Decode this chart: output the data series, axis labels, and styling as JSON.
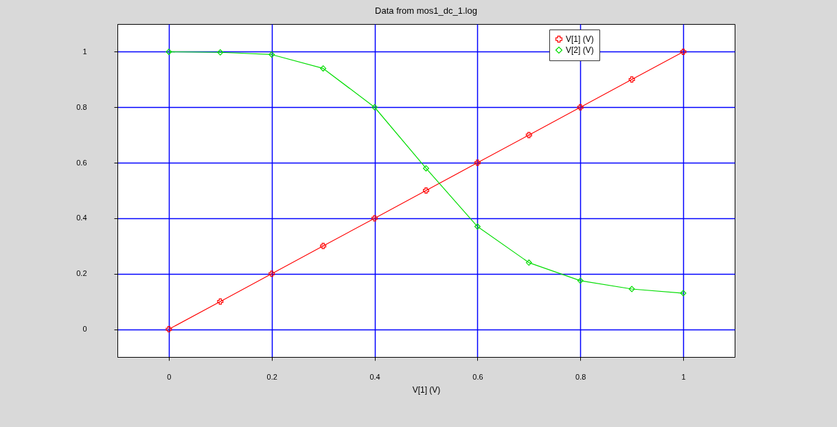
{
  "chart_data": {
    "type": "line",
    "title": "Data from mos1_dc_1.log",
    "xlabel": "V[1] (V)",
    "x": [
      0,
      0.1,
      0.2,
      0.3,
      0.4,
      0.5,
      0.6,
      0.7,
      0.8,
      0.9,
      1
    ],
    "series": [
      {
        "name": "V[1] (V)",
        "color": "#ff0000",
        "marker": "cross",
        "values": [
          0,
          0.1,
          0.2,
          0.3,
          0.4,
          0.5,
          0.6,
          0.7,
          0.8,
          0.9,
          1
        ]
      },
      {
        "name": "V[2] (V)",
        "color": "#00dd00",
        "marker": "diamond",
        "values": [
          1,
          0.998,
          0.99,
          0.94,
          0.8,
          0.58,
          0.37,
          0.24,
          0.175,
          0.145,
          0.13
        ]
      }
    ],
    "xlim": [
      -0.1,
      1.1
    ],
    "xticks": [
      0,
      0.2,
      0.4,
      0.6,
      0.8,
      1
    ],
    "ylim": [
      -0.1,
      1.1
    ],
    "yticks": [
      0,
      0.2,
      0.4,
      0.6,
      0.8,
      1
    ],
    "grid": true,
    "legend": "top right"
  }
}
